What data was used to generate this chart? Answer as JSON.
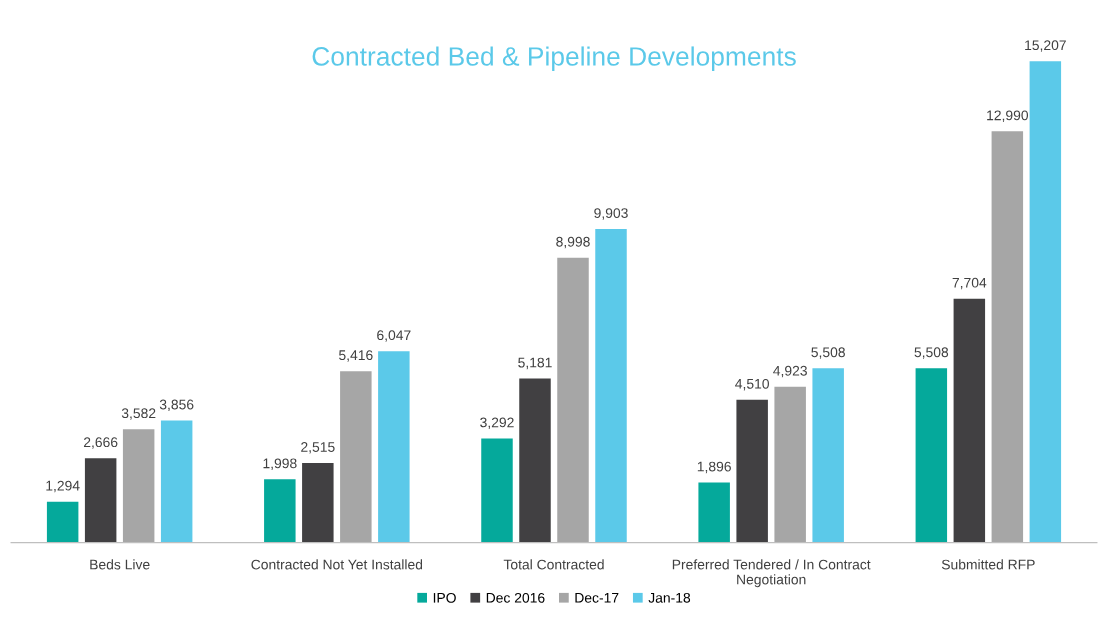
{
  "chart_data": {
    "type": "bar",
    "title": "Contracted Bed & Pipeline Developments",
    "categories": [
      "Beds Live",
      "Contracted Not Yet Installed",
      "Total Contracted",
      "Preferred Tendered / In Contract\nNegotiation",
      "Submitted RFP"
    ],
    "series": [
      {
        "name": "IPO",
        "color": "#05a99b",
        "values": [
          1294,
          1998,
          3292,
          1896,
          5508
        ],
        "value_labels": [
          "1,294",
          "1,998",
          "3,292",
          "1,896",
          "5,508"
        ]
      },
      {
        "name": "Dec 2016",
        "color": "#414042",
        "values": [
          2666,
          2515,
          5181,
          4510,
          7704
        ],
        "value_labels": [
          "2,666",
          "2,515",
          "5,181",
          "4,510",
          "7,704"
        ]
      },
      {
        "name": "Dec-17",
        "color": "#a6a6a6",
        "values": [
          3582,
          5416,
          8998,
          4923,
          12990
        ],
        "value_labels": [
          "3,582",
          "5,416",
          "8,998",
          "4,923",
          "12,990"
        ]
      },
      {
        "name": "Jan-18",
        "color": "#5bc9e9",
        "values": [
          3856,
          6047,
          9903,
          5508,
          15207
        ],
        "value_labels": [
          "3,856",
          "6,047",
          "9,903",
          "5,508",
          "15,207"
        ]
      }
    ],
    "tick_labels": "x",
    "grid": false,
    "legend": "bottom"
  }
}
